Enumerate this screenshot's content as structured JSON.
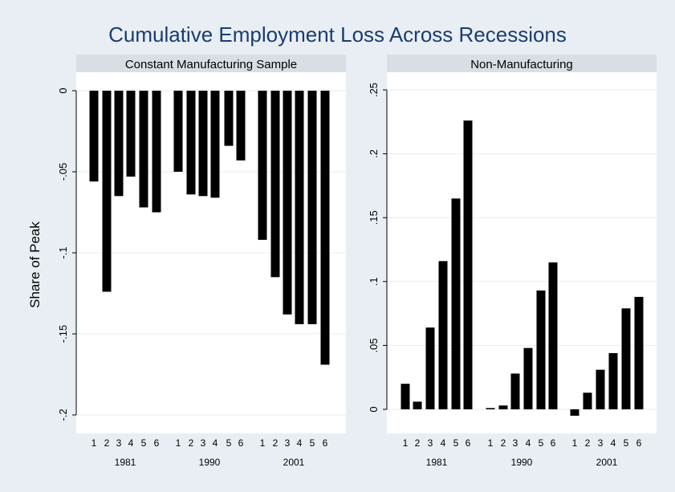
{
  "chart_data": {
    "type": "bar",
    "title": "Cumulative Employment Loss Across Recessions",
    "ylabel": "Share of Peak",
    "groups": [
      "1981",
      "1990",
      "2001"
    ],
    "bar_labels": [
      "1",
      "2",
      "3",
      "4",
      "5",
      "6"
    ],
    "panels": [
      {
        "name": "Constant Manufacturing Sample",
        "ylim": [
          -0.2,
          0
        ],
        "yticks": [
          0,
          -0.05,
          -0.1,
          -0.15,
          -0.2
        ],
        "ytick_labels": [
          "0",
          "-.05",
          "-.1",
          "-.15",
          "-.2"
        ],
        "values": {
          "1981": [
            -0.056,
            -0.124,
            -0.065,
            -0.053,
            -0.072,
            -0.075
          ],
          "1990": [
            -0.05,
            -0.064,
            -0.065,
            -0.066,
            -0.034,
            -0.043
          ],
          "2001": [
            -0.092,
            -0.115,
            -0.138,
            -0.144,
            -0.144,
            -0.169
          ]
        }
      },
      {
        "name": "Non-Manufacturing",
        "ylim": [
          0,
          0.25
        ],
        "yticks": [
          0,
          0.05,
          0.1,
          0.15,
          0.2,
          0.25
        ],
        "ytick_labels": [
          "0",
          ".05",
          ".1",
          ".15",
          ".2",
          ".25"
        ],
        "values": {
          "1981": [
            0.02,
            0.006,
            0.064,
            0.116,
            0.165,
            0.226
          ],
          "1990": [
            0.001,
            0.003,
            0.028,
            0.048,
            0.093,
            0.115
          ],
          "2001": [
            -0.005,
            0.013,
            0.031,
            0.044,
            0.079,
            0.088
          ]
        }
      }
    ]
  }
}
